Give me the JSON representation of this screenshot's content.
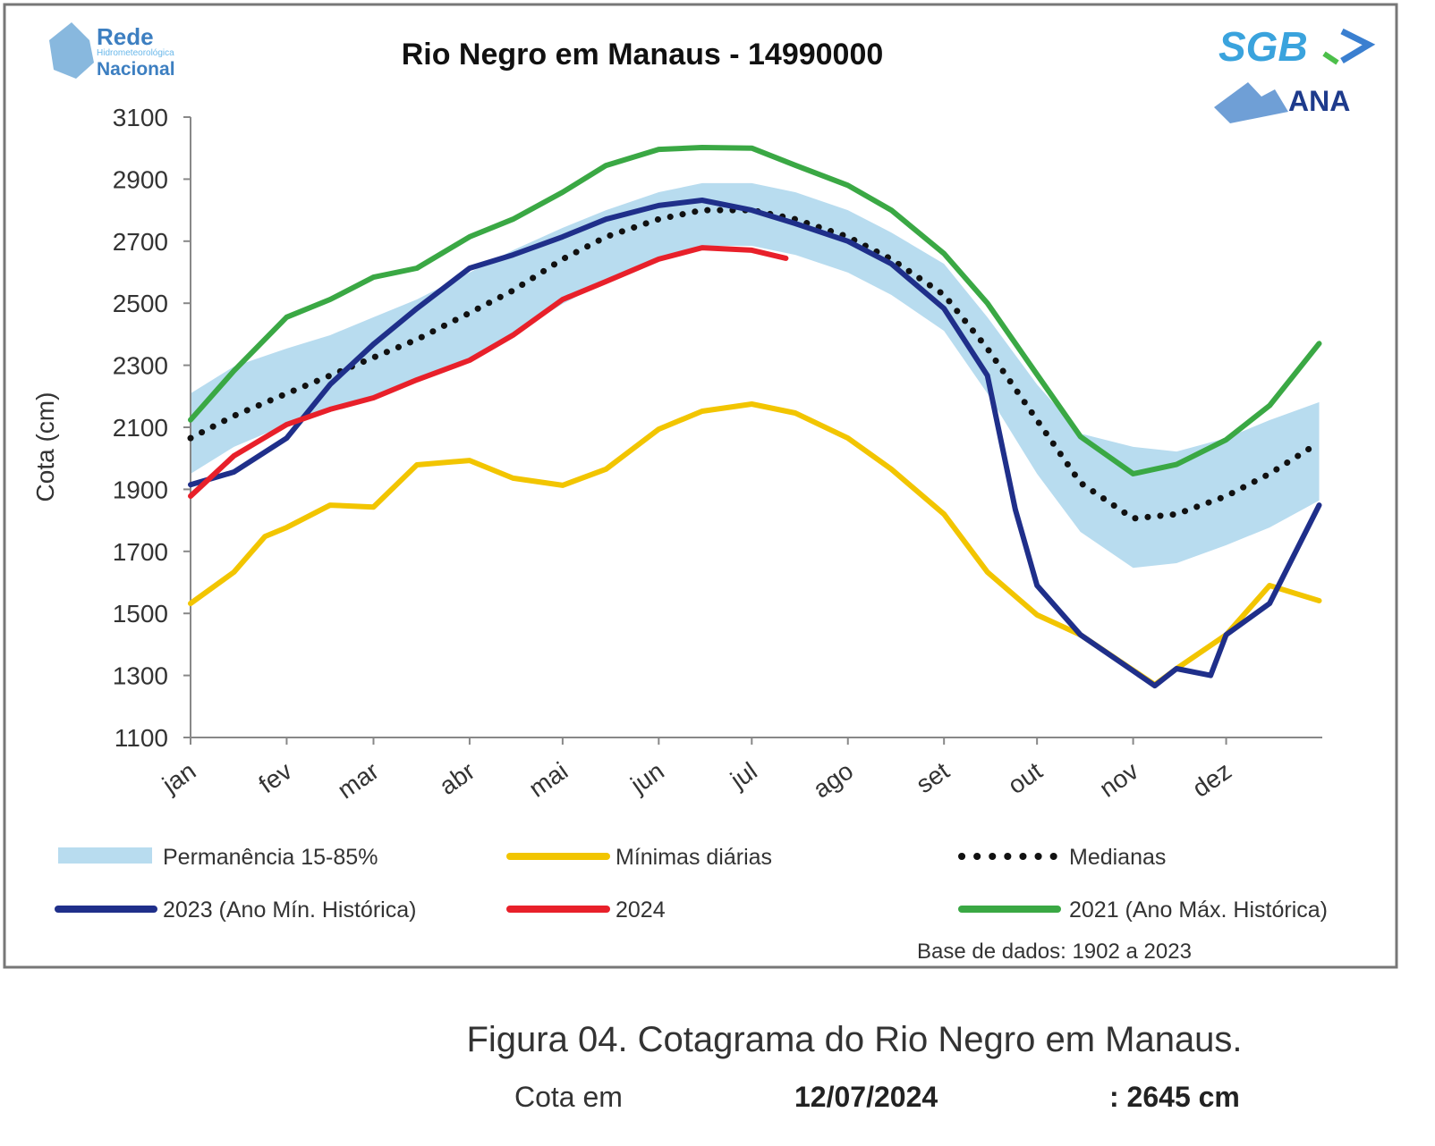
{
  "logos": {
    "left": "Rede Hidrometeorológica Nacional",
    "right_top": "SGB",
    "right_bottom": "ANA"
  },
  "chart_data": {
    "type": "line",
    "title": "Rio Negro em Manaus - 14990000",
    "ylabel": "Cota (cm)",
    "xlabel": "",
    "ylim": [
      1100,
      3100
    ],
    "yticks": [
      1100,
      1300,
      1500,
      1700,
      1900,
      2100,
      2300,
      2500,
      2700,
      2900,
      3100
    ],
    "xticks": [
      "jan",
      "fev",
      "mar",
      "abr",
      "mai",
      "jun",
      "jul",
      "ago",
      "set",
      "out",
      "nov",
      "dez"
    ],
    "grid": false,
    "legend_position": "bottom",
    "band": {
      "name": "Permanência 15-85%",
      "color": "#b8dcef",
      "x": [
        "01-01",
        "01-15",
        "02-01",
        "02-15",
        "03-01",
        "03-15",
        "04-01",
        "04-15",
        "05-01",
        "05-15",
        "06-01",
        "06-15",
        "07-01",
        "07-15",
        "08-01",
        "08-15",
        "09-01",
        "09-15",
        "10-01",
        "10-15",
        "11-01",
        "11-15",
        "12-01",
        "12-15",
        "12-31"
      ],
      "upper": [
        2209,
        2296,
        2354,
        2397,
        2455,
        2512,
        2599,
        2671,
        2743,
        2800,
        2858,
        2887,
        2887,
        2858,
        2800,
        2728,
        2627,
        2455,
        2238,
        2080,
        2037,
        2022,
        2065,
        2123,
        2181
      ],
      "lower": [
        1950,
        2037,
        2109,
        2152,
        2195,
        2253,
        2325,
        2397,
        2498,
        2570,
        2642,
        2685,
        2685,
        2656,
        2599,
        2527,
        2411,
        2209,
        1950,
        1763,
        1647,
        1662,
        1720,
        1777,
        1864
      ]
    },
    "series": [
      {
        "name": "Mínimas diárias",
        "color": "#f2c500",
        "style": "solid",
        "x": [
          "01-01",
          "01-15",
          "01-25",
          "02-01",
          "02-15",
          "03-01",
          "03-15",
          "04-01",
          "04-15",
          "05-01",
          "05-15",
          "06-01",
          "06-15",
          "07-01",
          "07-15",
          "08-01",
          "08-15",
          "09-01",
          "09-15",
          "10-01",
          "10-15",
          "11-08",
          "11-15",
          "12-01",
          "12-15",
          "12-31"
        ],
        "y": [
          1532,
          1633,
          1748,
          1777,
          1849,
          1843,
          1979,
          1993,
          1936,
          1913,
          1965,
          2094,
          2152,
          2175,
          2146,
          2065,
          1965,
          1820,
          1633,
          1495,
          1431,
          1270,
          1322,
          1431,
          1590,
          1541
        ]
      },
      {
        "name": "Medianas",
        "color": "#111111",
        "style": "dotted",
        "x": [
          "01-01",
          "01-15",
          "02-01",
          "02-15",
          "03-01",
          "03-15",
          "04-01",
          "04-15",
          "05-01",
          "05-15",
          "06-01",
          "06-15",
          "07-01",
          "07-15",
          "08-01",
          "08-15",
          "09-01",
          "09-15",
          "10-01",
          "10-15",
          "11-01",
          "11-15",
          "12-01",
          "12-15",
          "12-31"
        ],
        "y": [
          2065,
          2137,
          2209,
          2267,
          2325,
          2383,
          2469,
          2541,
          2642,
          2714,
          2771,
          2800,
          2800,
          2771,
          2714,
          2642,
          2527,
          2354,
          2123,
          1921,
          1806,
          1820,
          1878,
          1950,
          2051
        ]
      },
      {
        "name": "2021 (Ano Máx. Histórica)",
        "color": "#3aa844",
        "style": "solid",
        "x": [
          "01-01",
          "01-15",
          "02-01",
          "02-15",
          "03-01",
          "03-15",
          "04-01",
          "04-15",
          "05-01",
          "05-15",
          "06-01",
          "06-15",
          "07-01",
          "07-15",
          "08-01",
          "08-15",
          "09-01",
          "09-15",
          "10-01",
          "10-15",
          "11-01",
          "11-15",
          "12-01",
          "12-15",
          "12-31"
        ],
        "y": [
          2124,
          2282,
          2455,
          2512,
          2584,
          2613,
          2714,
          2771,
          2858,
          2944,
          2996,
          3002,
          3000,
          2945,
          2880,
          2800,
          2660,
          2500,
          2270,
          2070,
          1950,
          1980,
          2060,
          2170,
          2370
        ]
      },
      {
        "name": "2023 (Ano Mín. Histórica)",
        "color": "#1f2f8a",
        "style": "solid",
        "x": [
          "01-01",
          "01-15",
          "02-01",
          "02-15",
          "03-01",
          "03-15",
          "04-01",
          "04-15",
          "05-01",
          "05-15",
          "06-01",
          "06-15",
          "07-01",
          "07-15",
          "08-01",
          "08-15",
          "09-01",
          "09-15",
          "09-24",
          "10-01",
          "10-15",
          "11-08",
          "11-15",
          "11-26",
          "12-01",
          "12-15",
          "12-31"
        ],
        "y": [
          1915,
          1956,
          2065,
          2238,
          2368,
          2483,
          2613,
          2656,
          2714,
          2771,
          2815,
          2832,
          2800,
          2757,
          2700,
          2627,
          2483,
          2267,
          1835,
          1590,
          1431,
          1267,
          1322,
          1300,
          1431,
          1532,
          1849
        ]
      },
      {
        "name": "2024",
        "color": "#e8202a",
        "style": "solid",
        "x": [
          "01-01",
          "01-15",
          "02-01",
          "02-15",
          "03-01",
          "03-15",
          "04-01",
          "04-15",
          "05-01",
          "05-15",
          "06-01",
          "06-15",
          "07-01",
          "07-12"
        ],
        "y": [
          1878,
          2008,
          2109,
          2158,
          2195,
          2253,
          2316,
          2397,
          2512,
          2570,
          2642,
          2679,
          2671,
          2645
        ]
      }
    ],
    "legend": [
      "Permanência 15-85%",
      "Mínimas diárias",
      "Medianas",
      "2023 (Ano Mín. Histórica)",
      "2024",
      "2021 (Ano Máx. Histórica)"
    ],
    "note": "Base de dados: 1902 a 2023"
  },
  "caption": "Figura 04. Cotagrama do Rio Negro em Manaus.",
  "reading": {
    "label": "Cota em",
    "date": "12/07/2024",
    "value": ": 2645 cm"
  }
}
